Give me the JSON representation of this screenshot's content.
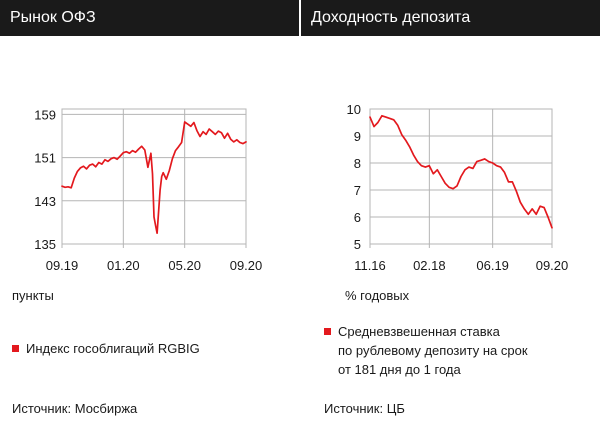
{
  "colors": {
    "header_bg": "#1a1a1a",
    "line": "#e3191e",
    "grid": "#b5b5b5"
  },
  "left": {
    "title": "Рынок ОФЗ",
    "unit": "пункты",
    "legend": "Индекс гособлигаций RGBIG",
    "source": "Источник: Мосбиржа",
    "chart_data": {
      "type": "line",
      "title": "",
      "ylim": [
        135,
        160
      ],
      "yticks": [
        135,
        143,
        151,
        159
      ],
      "xlim": [
        0,
        12
      ],
      "xticks": [
        0,
        4,
        8,
        12
      ],
      "xticklabels": [
        "09.19",
        "01.20",
        "05.20",
        "09.20"
      ],
      "grid": true,
      "series": [
        {
          "name": "Индекс гособлигаций RGBIG",
          "x": [
            0,
            0.2,
            0.4,
            0.6,
            0.8,
            1.0,
            1.2,
            1.4,
            1.6,
            1.8,
            2.0,
            2.2,
            2.4,
            2.6,
            2.8,
            3.0,
            3.2,
            3.4,
            3.6,
            3.8,
            4.0,
            4.2,
            4.4,
            4.6,
            4.8,
            5.0,
            5.2,
            5.4,
            5.6,
            5.8,
            5.9,
            6.0,
            6.1,
            6.2,
            6.3,
            6.4,
            6.5,
            6.6,
            6.8,
            7.0,
            7.2,
            7.4,
            7.6,
            7.8,
            8.0,
            8.2,
            8.4,
            8.6,
            8.8,
            9.0,
            9.2,
            9.4,
            9.6,
            9.8,
            10.0,
            10.2,
            10.4,
            10.6,
            10.8,
            11.0,
            11.2,
            11.4,
            11.6,
            11.8,
            12.0
          ],
          "values": [
            145.7,
            145.5,
            145.6,
            145.4,
            147.2,
            148.4,
            149.1,
            149.4,
            148.9,
            149.6,
            149.8,
            149.3,
            150.1,
            149.8,
            150.6,
            150.3,
            150.8,
            151.0,
            150.7,
            151.3,
            151.9,
            152.1,
            151.8,
            152.3,
            152.0,
            152.6,
            153.1,
            152.4,
            149.2,
            151.8,
            148.0,
            140.0,
            138.5,
            137.0,
            141.0,
            145.0,
            147.5,
            148.2,
            147.0,
            148.6,
            150.8,
            152.3,
            153.0,
            153.8,
            157.6,
            157.2,
            156.8,
            157.5,
            156.0,
            154.9,
            155.8,
            155.3,
            156.3,
            155.8,
            155.3,
            155.9,
            155.6,
            154.6,
            155.5,
            154.4,
            153.9,
            154.3,
            153.8,
            153.6,
            153.9
          ]
        }
      ]
    }
  },
  "right": {
    "title": "Доходность депозита",
    "unit": "% годовых",
    "legend": "Средневзвешенная ставка\nпо рублевому депозиту на срок\nот 181 дня до 1 года",
    "source": "Источник: ЦБ",
    "chart_data": {
      "type": "line",
      "title": "",
      "ylim": [
        5,
        10
      ],
      "yticks": [
        5,
        6,
        7,
        8,
        9,
        10
      ],
      "xlim": [
        0,
        46
      ],
      "xticks": [
        0,
        15,
        31,
        46
      ],
      "xticklabels": [
        "11.16",
        "02.18",
        "06.19",
        "09.20"
      ],
      "grid": true,
      "series": [
        {
          "name": "Средневзвешенная ставка по рублевому депозиту на срок от 181 дня до 1 года",
          "x": [
            0,
            1,
            2,
            3,
            4,
            5,
            6,
            7,
            8,
            9,
            10,
            11,
            12,
            13,
            14,
            15,
            16,
            17,
            18,
            19,
            20,
            21,
            22,
            23,
            24,
            25,
            26,
            27,
            28,
            29,
            30,
            31,
            32,
            33,
            34,
            35,
            36,
            37,
            38,
            39,
            40,
            41,
            42,
            43,
            44,
            45,
            46
          ],
          "values": [
            9.7,
            9.35,
            9.5,
            9.75,
            9.7,
            9.65,
            9.6,
            9.4,
            9.05,
            8.85,
            8.6,
            8.3,
            8.05,
            7.9,
            7.85,
            7.9,
            7.6,
            7.75,
            7.5,
            7.25,
            7.1,
            7.05,
            7.15,
            7.5,
            7.75,
            7.85,
            7.8,
            8.05,
            8.1,
            8.15,
            8.05,
            8.0,
            7.9,
            7.85,
            7.65,
            7.3,
            7.3,
            6.95,
            6.55,
            6.3,
            6.1,
            6.3,
            6.1,
            6.4,
            6.35,
            6.0,
            5.6
          ]
        }
      ]
    }
  }
}
